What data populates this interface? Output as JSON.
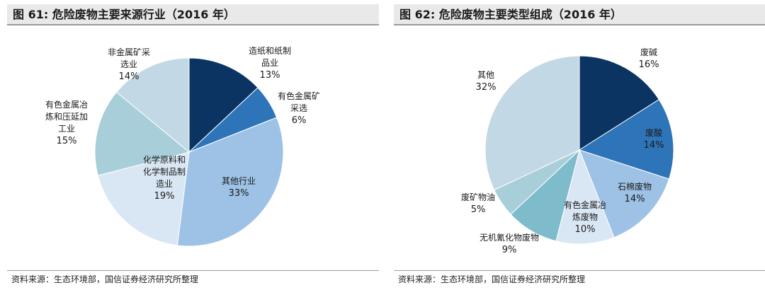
{
  "charts": [
    {
      "title": "图 61: 危险废物主要来源行业（2016 年）",
      "source": "资料来源：生态环境部，国信证券经济研究所整理"
    },
    {
      "title": "图 62: 危险废物主要类型组成（2016 年）",
      "source": "资料来源：生态环境部，国信证券经济研究所整理"
    }
  ],
  "chart_data": [
    {
      "type": "pie",
      "title": "图 61: 危险废物主要来源行业（2016 年）",
      "slices": [
        {
          "label_lines": [
            "造纸和纸制",
            "品业"
          ],
          "value_text": "13%",
          "value": 13,
          "color": "#0b3463"
        },
        {
          "label_lines": [
            "有色金属矿",
            "采选"
          ],
          "value_text": "6%",
          "value": 6,
          "color": "#2e74b8"
        },
        {
          "label_lines": [
            "其他行业"
          ],
          "value_text": "33%",
          "value": 33,
          "color": "#9dc2e5"
        },
        {
          "label_lines": [
            "化学原料和",
            "化学制品制",
            "造业"
          ],
          "value_text": "19%",
          "value": 19,
          "color": "#d9e7f4"
        },
        {
          "label_lines": [
            "有色金属冶",
            "炼和压延加",
            "工业"
          ],
          "value_text": "15%",
          "value": 15,
          "color": "#a8cfd9"
        },
        {
          "label_lines": [
            "非金属矿采",
            "选业"
          ],
          "value_text": "14%",
          "value": 14,
          "color": "#c2d8e4"
        }
      ]
    },
    {
      "type": "pie",
      "title": "图 62: 危险废物主要类型组成（2016 年）",
      "slices": [
        {
          "label_lines": [
            "废碱"
          ],
          "value_text": "16%",
          "value": 16,
          "color": "#0b3463"
        },
        {
          "label_lines": [
            "废酸"
          ],
          "value_text": "14%",
          "value": 14,
          "color": "#2e74b8"
        },
        {
          "label_lines": [
            "石棉废物"
          ],
          "value_text": "14%",
          "value": 14,
          "color": "#9dc2e5"
        },
        {
          "label_lines": [
            "有色金属冶",
            "炼废物"
          ],
          "value_text": "10%",
          "value": 10,
          "color": "#d9e7f4"
        },
        {
          "label_lines": [
            "无机氰化物废物"
          ],
          "value_text": "9%",
          "value": 9,
          "color": "#7fbccb"
        },
        {
          "label_lines": [
            "废矿物油"
          ],
          "value_text": "5%",
          "value": 5,
          "color": "#a8cfd9"
        },
        {
          "label_lines": [
            "其他"
          ],
          "value_text": "32%",
          "value": 32,
          "color": "#c2d8e4"
        }
      ]
    }
  ]
}
